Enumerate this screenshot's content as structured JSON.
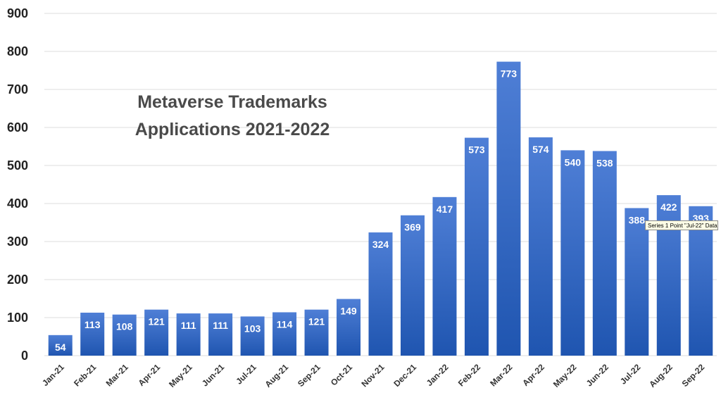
{
  "chart_data": {
    "type": "bar",
    "title_lines": [
      "Metaverse Trademarks",
      "Applications 2021-2022"
    ],
    "categories": [
      "Jan-21",
      "Feb-21",
      "Mar-21",
      "Apr-21",
      "May-21",
      "Jun-21",
      "Jul-21",
      "Aug-21",
      "Sep-21",
      "Oct-21",
      "Nov-21",
      "Dec-21",
      "Jan-22",
      "Feb-22",
      "Mar-22",
      "Apr-22",
      "May-22",
      "Jun-22",
      "Jul-22",
      "Aug-22",
      "Sep-22"
    ],
    "values": [
      54,
      113,
      108,
      121,
      111,
      111,
      103,
      114,
      121,
      149,
      324,
      369,
      417,
      573,
      773,
      574,
      540,
      538,
      388,
      422,
      393
    ],
    "ylim": [
      0,
      900
    ],
    "yticks": [
      0,
      100,
      200,
      300,
      400,
      500,
      600,
      700,
      800,
      900
    ],
    "grid": true,
    "legend": "none",
    "bar_color_top": "#4f7fd6",
    "bar_color_bottom": "#1f55b0"
  },
  "tooltip": {
    "text": "Series 1 Point \"Jul-22\" Data"
  }
}
